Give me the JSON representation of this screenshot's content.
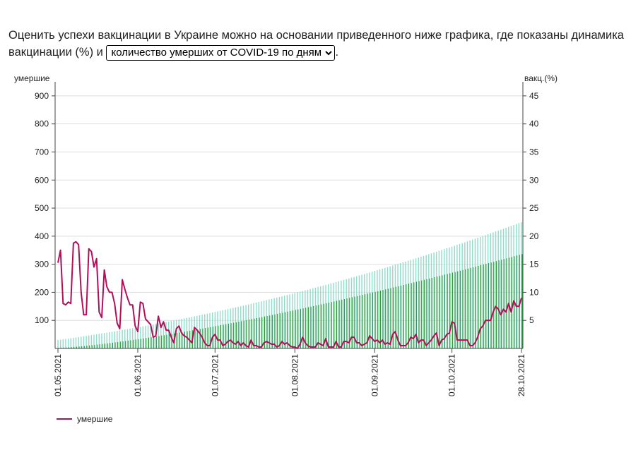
{
  "intro": {
    "text_before": "Оценить успехи вакцинации в Украине можно на основании приведенного ниже графика, где показаны динамика вакцинации (%) и",
    "text_after": ".",
    "select_value": "количество умерших от COVID-19 по дням"
  },
  "colors": {
    "deaths_line": "#b0105a",
    "vacc_full": "#2e9a3a",
    "vacc_first": "#8fdcc8",
    "grid": "#dddddd"
  },
  "legend": {
    "label": "умершие"
  },
  "chart_data": {
    "type": "line",
    "left_axis_label": "умершие",
    "right_axis_label": "вакц.(%)",
    "left_ylim": [
      0,
      950
    ],
    "left_ticks": [
      100,
      200,
      300,
      400,
      500,
      600,
      700,
      800,
      900
    ],
    "right_ylim": [
      0,
      47.5
    ],
    "right_ticks": [
      5,
      10,
      15,
      20,
      25,
      30,
      35,
      40,
      45
    ],
    "x_ticks": [
      "01.05.2021",
      "01.06.2021",
      "01.07.2021",
      "01.08.2021",
      "01.09.2021",
      "01.10.2021",
      "28.10.2021"
    ],
    "x_tick_days": [
      0,
      31,
      61,
      92,
      123,
      153,
      180
    ],
    "x_range_days": [
      0,
      180
    ],
    "grid": true,
    "series": [
      {
        "name": "умершие",
        "axis": "left",
        "x_days": [
          0,
          1,
          2,
          3,
          4,
          5,
          6,
          7,
          8,
          9,
          10,
          11,
          12,
          13,
          14,
          15,
          16,
          17,
          18,
          19,
          20,
          21,
          22,
          23,
          24,
          25,
          26,
          27,
          28,
          29,
          30,
          31,
          32,
          33,
          34,
          35,
          36,
          37,
          38,
          39,
          40,
          41,
          42,
          43,
          44,
          45,
          46,
          47,
          48,
          49,
          50,
          51,
          52,
          53,
          54,
          55,
          56,
          57,
          58,
          59,
          60,
          61,
          62,
          63,
          64,
          65,
          66,
          67,
          68,
          69,
          70,
          71,
          72,
          73,
          74,
          75,
          76,
          77,
          78,
          79,
          80,
          81,
          82,
          83,
          84,
          85,
          86,
          87,
          88,
          89,
          90,
          91,
          92,
          93,
          94,
          95,
          96,
          97,
          98,
          99,
          100,
          101,
          102,
          103,
          104,
          105,
          106,
          107,
          108,
          109,
          110,
          111,
          112,
          113,
          114,
          115,
          116,
          117,
          118,
          119,
          120,
          121,
          122,
          123,
          124,
          125,
          126,
          127,
          128,
          129,
          130,
          131,
          132,
          133,
          134,
          135,
          136,
          137,
          138,
          139,
          140,
          141,
          142,
          143,
          144,
          145,
          146,
          147,
          148,
          149,
          150,
          151,
          152,
          153,
          154,
          155,
          156,
          157,
          158,
          159,
          160,
          161,
          162,
          163,
          164,
          165,
          166,
          167,
          168,
          169,
          170,
          171,
          172,
          173,
          174,
          175,
          176,
          177,
          178,
          179,
          180
        ],
        "values": [
          305,
          350,
          160,
          155,
          165,
          160,
          375,
          380,
          370,
          200,
          120,
          120,
          355,
          345,
          290,
          320,
          130,
          110,
          280,
          220,
          200,
          200,
          160,
          90,
          70,
          245,
          210,
          180,
          155,
          155,
          80,
          60,
          165,
          160,
          105,
          95,
          85,
          40,
          45,
          115,
          75,
          95,
          65,
          65,
          40,
          20,
          70,
          80,
          55,
          45,
          40,
          30,
          20,
          75,
          65,
          55,
          40,
          20,
          10,
          10,
          40,
          50,
          30,
          30,
          10,
          15,
          25,
          30,
          20,
          15,
          25,
          10,
          20,
          10,
          5,
          30,
          10,
          10,
          5,
          5,
          20,
          25,
          20,
          15,
          15,
          5,
          10,
          25,
          15,
          20,
          10,
          5,
          5,
          0,
          15,
          40,
          20,
          10,
          5,
          5,
          5,
          20,
          15,
          10,
          35,
          5,
          5,
          5,
          25,
          5,
          5,
          25,
          25,
          20,
          40,
          40,
          20,
          20,
          10,
          15,
          20,
          45,
          35,
          25,
          30,
          20,
          30,
          15,
          20,
          15,
          50,
          60,
          30,
          10,
          10,
          10,
          20,
          40,
          35,
          50,
          20,
          30,
          30,
          10,
          20,
          30,
          45,
          55,
          10,
          30,
          35,
          50,
          55,
          95,
          90,
          30,
          30,
          30,
          30,
          30,
          10,
          10,
          20,
          40,
          70,
          80,
          100,
          100,
          100,
          130,
          150,
          140,
          120,
          140,
          130,
          160,
          130,
          170,
          150,
          150,
          180
        ]
      }
    ],
    "vaccination": {
      "axis": "right",
      "x_days_step": 1,
      "first_dose_start": 1.5,
      "first_dose_end": 22.5,
      "full_dose_start": 0.1,
      "full_dose_end": 16.8
    }
  }
}
